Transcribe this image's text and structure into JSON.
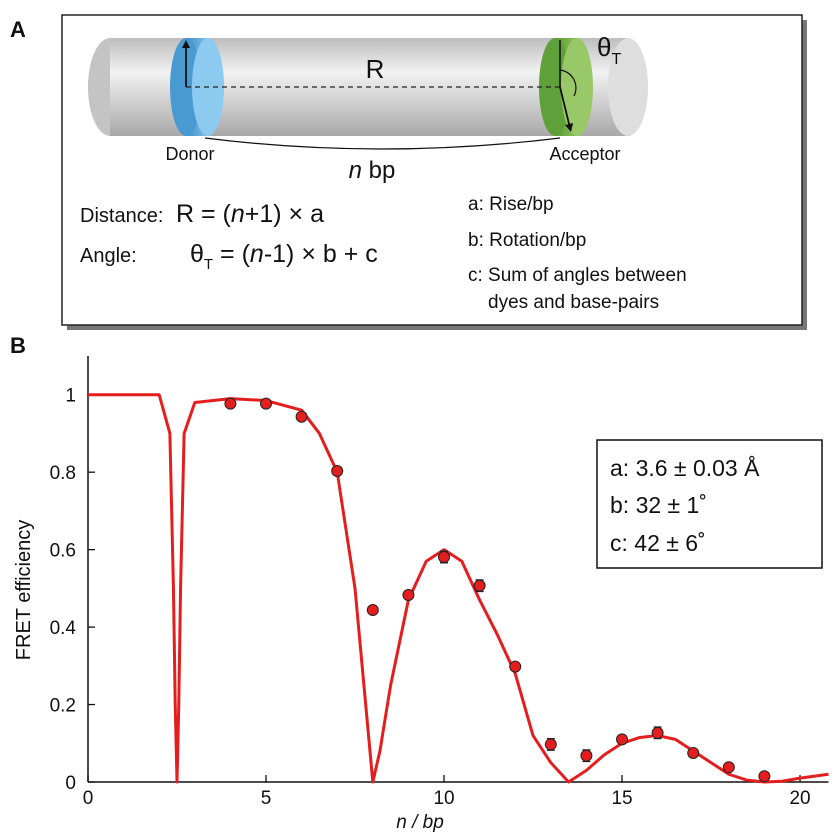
{
  "diagram": {
    "panel_label": "A",
    "distance_symbol": "R",
    "angle_symbol": "θ",
    "angle_sub": "T",
    "donor": "Donor",
    "acceptor": "Acceptor",
    "n_italic": "n",
    "bp": " bp",
    "distance_label": "Distance:",
    "distance_formula": [
      "R = (",
      "n",
      "+1) × a"
    ],
    "angle_label": "Angle:",
    "angle_formula": [
      "θ",
      "T",
      " = (",
      "n",
      "-1) × b + c"
    ],
    "key": [
      "a: Rise/bp",
      "b: Rotation/bp",
      "c: Sum of angles between",
      "dyes and base-pairs"
    ]
  },
  "chart_data": {
    "type": "line",
    "panel_label": "B",
    "xlabel": "n / bp",
    "ylabel": "FRET efficiency",
    "xlim": [
      0,
      20.8
    ],
    "ylim": [
      0,
      1.1
    ],
    "xticks": [
      0,
      5,
      10,
      15,
      20
    ],
    "yticks": [
      0,
      0.2,
      0.4,
      0.6,
      0.8,
      1
    ],
    "annotations": [
      "a: 3.6 ± 0.03 Å",
      "b: 32 ± 1˚",
      "c: 42 ± 6˚"
    ],
    "series": [
      {
        "type": "line",
        "color": "#e41e1e",
        "x": [
          0,
          2,
          2.3,
          2.4,
          2.45,
          2.5,
          2.55,
          2.6,
          2.7,
          3,
          4,
          5,
          6,
          6.5,
          7,
          7.5,
          7.8,
          8,
          8.2,
          8.5,
          9,
          9.5,
          10,
          10.5,
          11,
          11.5,
          12,
          12.5,
          13,
          13.5,
          14,
          14.5,
          15,
          15.5,
          16,
          16.5,
          17,
          17.5,
          18,
          18.5,
          19,
          19.5,
          20,
          20.8
        ],
        "values": [
          1,
          1,
          0.9,
          0.5,
          0.2,
          0,
          0.2,
          0.5,
          0.9,
          0.98,
          0.99,
          0.985,
          0.96,
          0.9,
          0.8,
          0.5,
          0.2,
          0,
          0.08,
          0.25,
          0.47,
          0.57,
          0.6,
          0.57,
          0.47,
          0.38,
          0.28,
          0.12,
          0.05,
          0,
          0.03,
          0.07,
          0.1,
          0.115,
          0.12,
          0.11,
          0.08,
          0.05,
          0.02,
          0.005,
          0,
          0.002,
          0.01,
          0.02
        ]
      },
      {
        "type": "scatter",
        "color": "#e41e1e",
        "x": [
          4,
          5,
          6,
          7,
          8,
          9,
          10,
          11,
          12,
          13,
          14,
          15,
          16,
          17,
          18,
          19
        ],
        "values": [
          0.977,
          0.977,
          0.943,
          0.803,
          0.444,
          0.483,
          0.581,
          0.507,
          0.298,
          0.097,
          0.068,
          0.11,
          0.127,
          0.075,
          0.038,
          0.015
        ],
        "errors": [
          0.005,
          0.005,
          0.005,
          0.005,
          0.005,
          0.005,
          0.015,
          0.015,
          0.005,
          0.015,
          0.015,
          0.01,
          0.015,
          0.005,
          0.005,
          0.005
        ]
      }
    ]
  }
}
